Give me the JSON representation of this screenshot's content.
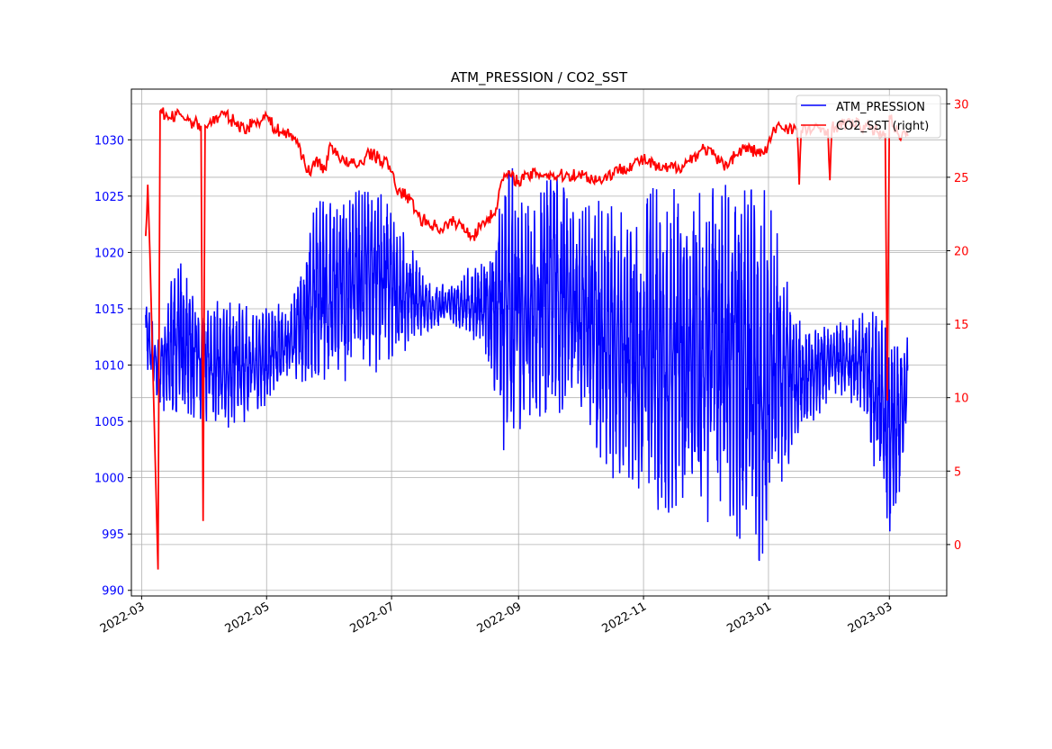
{
  "chart_data": {
    "type": "line",
    "title": "ATM_PRESSION / CO2_SST",
    "xlabel": "",
    "ylabel_left": "",
    "ylabel_right": "",
    "x_range": [
      "2022-02-24",
      "2023-03-29"
    ],
    "ylim_left": [
      989.5,
      1034.5
    ],
    "ylim_right": [
      -3.5,
      31
    ],
    "x_ticks": [
      "2022-03-01",
      "2022-05-01",
      "2022-07-01",
      "2022-09-01",
      "2022-11-01",
      "2023-01-01",
      "2023-03-01"
    ],
    "x_tick_labels": [
      "2022-03",
      "2022-05",
      "2022-07",
      "2022-09",
      "2022-11",
      "2023-01",
      "2023-03"
    ],
    "y_ticks_left": [
      990,
      995,
      1000,
      1005,
      1010,
      1015,
      1020,
      1025,
      1030
    ],
    "y_ticks_right": [
      0,
      5,
      10,
      15,
      20,
      25,
      30
    ],
    "grid": true,
    "legend": {
      "placement": "top-right",
      "entries": [
        "ATM_PRESSION",
        "CO2_SST (right)"
      ]
    },
    "colors": {
      "left": "#0000ff",
      "right": "#ff0000"
    },
    "series": [
      {
        "name": "ATM_PRESSION",
        "axis": "left",
        "note_envelope": "date, low, high (approximate envelope of high-frequency signal)",
        "envelope": [
          [
            "2022-03-03",
            1010,
            1016
          ],
          [
            "2022-03-10",
            1006,
            1012
          ],
          [
            "2022-03-17",
            1005,
            1020
          ],
          [
            "2022-03-31",
            1005,
            1016
          ],
          [
            "2022-04-14",
            1004,
            1016
          ],
          [
            "2022-04-28",
            1006,
            1015
          ],
          [
            "2022-05-12",
            1008,
            1016
          ],
          [
            "2022-05-26",
            1007,
            1025
          ],
          [
            "2022-06-09",
            1008,
            1026
          ],
          [
            "2022-06-23",
            1009,
            1027
          ],
          [
            "2022-07-07",
            1011,
            1022
          ],
          [
            "2022-07-21",
            1013,
            1017
          ],
          [
            "2022-08-04",
            1013,
            1018
          ],
          [
            "2022-08-18",
            1010,
            1021
          ],
          [
            "2022-08-25",
            1002,
            1029
          ],
          [
            "2022-09-08",
            1005,
            1025
          ],
          [
            "2022-09-15",
            1004,
            1032
          ],
          [
            "2022-09-29",
            1006,
            1024
          ],
          [
            "2022-10-13",
            1000,
            1025
          ],
          [
            "2022-10-27",
            998,
            1024
          ],
          [
            "2022-11-10",
            995,
            1027
          ],
          [
            "2022-11-24",
            996,
            1025
          ],
          [
            "2022-12-08",
            995,
            1027
          ],
          [
            "2022-12-22",
            994,
            1028
          ],
          [
            "2022-12-29",
            991,
            1027
          ],
          [
            "2023-01-05",
            998,
            1022
          ],
          [
            "2023-01-19",
            1004,
            1013
          ],
          [
            "2023-02-02",
            1007,
            1014
          ],
          [
            "2023-02-16",
            1006,
            1015
          ],
          [
            "2023-03-01",
            993,
            1015
          ],
          [
            "2023-03-10",
            1002,
            1013
          ]
        ]
      },
      {
        "name": "CO2_SST",
        "axis": "right",
        "points": [
          [
            "2022-03-03",
            21
          ],
          [
            "2022-03-04",
            24.5
          ],
          [
            "2022-03-05",
            20
          ],
          [
            "2022-03-09",
            -1.7
          ],
          [
            "2022-03-10",
            29.5
          ],
          [
            "2022-03-15",
            29
          ],
          [
            "2022-03-20",
            29.3
          ],
          [
            "2022-03-25",
            28.8
          ],
          [
            "2022-03-30",
            28.5
          ],
          [
            "2022-03-31",
            1.6
          ],
          [
            "2022-04-01",
            28.5
          ],
          [
            "2022-04-10",
            29.3
          ],
          [
            "2022-04-20",
            28.3
          ],
          [
            "2022-05-01",
            29.2
          ],
          [
            "2022-05-05",
            28.3
          ],
          [
            "2022-05-15",
            27.7
          ],
          [
            "2022-05-22",
            25.2
          ],
          [
            "2022-05-25",
            26.2
          ],
          [
            "2022-05-30",
            25.5
          ],
          [
            "2022-06-01",
            27.3
          ],
          [
            "2022-06-08",
            26
          ],
          [
            "2022-06-15",
            25.8
          ],
          [
            "2022-06-20",
            26.7
          ],
          [
            "2022-06-30",
            25.8
          ],
          [
            "2022-07-03",
            24.3
          ],
          [
            "2022-07-10",
            23.5
          ],
          [
            "2022-07-15",
            22.2
          ],
          [
            "2022-07-25",
            21.5
          ],
          [
            "2022-08-01",
            22
          ],
          [
            "2022-08-10",
            21
          ],
          [
            "2022-08-15",
            22
          ],
          [
            "2022-08-20",
            22.5
          ],
          [
            "2022-08-25",
            25.2
          ],
          [
            "2022-09-01",
            24.8
          ],
          [
            "2022-09-10",
            25.3
          ],
          [
            "2022-09-20",
            25.1
          ],
          [
            "2022-10-01",
            25.2
          ],
          [
            "2022-10-10",
            24.8
          ],
          [
            "2022-10-20",
            25.5
          ],
          [
            "2022-11-01",
            26.2
          ],
          [
            "2022-11-10",
            25.5
          ],
          [
            "2022-11-20",
            25.8
          ],
          [
            "2022-12-01",
            27
          ],
          [
            "2022-12-10",
            25.8
          ],
          [
            "2022-12-20",
            27
          ],
          [
            "2022-12-30",
            26.6
          ],
          [
            "2023-01-05",
            28.5
          ],
          [
            "2023-01-15",
            28.3
          ],
          [
            "2023-01-16",
            24.5
          ],
          [
            "2023-01-17",
            28.2
          ],
          [
            "2023-01-30",
            28.3
          ],
          [
            "2023-01-31",
            24.8
          ],
          [
            "2023-02-01",
            28.4
          ],
          [
            "2023-02-10",
            28.7
          ],
          [
            "2023-02-20",
            28.3
          ],
          [
            "2023-02-27",
            28
          ],
          [
            "2023-02-28",
            9.8
          ],
          [
            "2023-03-01",
            29.2
          ],
          [
            "2023-03-05",
            28
          ],
          [
            "2023-03-10",
            27.8
          ]
        ]
      }
    ]
  }
}
